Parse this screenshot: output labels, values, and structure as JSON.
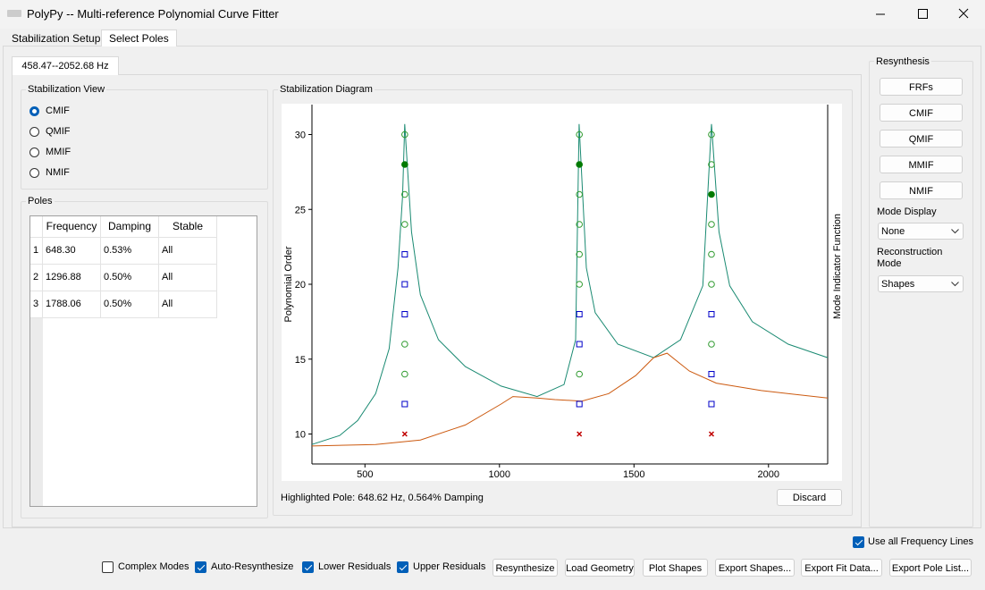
{
  "window": {
    "title": "PolyPy -- Multi-reference Polynomial Curve Fitter"
  },
  "tabs": {
    "items": [
      "Stabilization Setup",
      "Select Poles"
    ],
    "active": 1
  },
  "subtab": "458.47--2052.68 Hz",
  "stabilization_view": {
    "title": "Stabilization View",
    "options": [
      "CMIF",
      "QMIF",
      "MMIF",
      "NMIF"
    ],
    "selected": 0
  },
  "poles": {
    "title": "Poles",
    "columns": [
      "Frequency",
      "Damping",
      "Stable"
    ],
    "row_numbers": [
      "1",
      "2",
      "3"
    ],
    "rows": [
      [
        "648.30",
        "0.53%",
        "All"
      ],
      [
        "1296.88",
        "0.50%",
        "All"
      ],
      [
        "1788.06",
        "0.50%",
        "All"
      ]
    ]
  },
  "diagram": {
    "title": "Stabilization Diagram",
    "highlighted": "Highlighted Pole: 648.62 Hz, 0.564% Damping",
    "discard": "Discard"
  },
  "chart_data": {
    "type": "scatter",
    "ylabel": "Polynomial Order",
    "y2label": "Mode Indicator Function",
    "xlim": [
      303,
      2220
    ],
    "ylim": [
      8,
      32
    ],
    "xticks": [
      500,
      1000,
      1500,
      2000
    ],
    "yticks": [
      10,
      15,
      20,
      25,
      30
    ],
    "series": [
      {
        "color": "#1a8a72",
        "x": [
          303,
          406,
          473,
          540,
          590,
          623,
          640,
          648,
          673,
          706,
          773,
          873,
          1006,
          1140,
          1240,
          1283,
          1296,
          1323,
          1356,
          1440,
          1573,
          1673,
          1756,
          1788,
          1816,
          1856,
          1940,
          2073,
          2220
        ],
        "values": [
          9.3,
          9.9,
          10.9,
          12.7,
          15.7,
          21.1,
          25.9,
          30.7,
          23.5,
          19.3,
          16.3,
          14.5,
          13.2,
          12.5,
          13.3,
          16.3,
          30.7,
          21.1,
          18.1,
          16.0,
          15.1,
          16.3,
          19.9,
          30.7,
          23.5,
          19.9,
          17.5,
          16.0,
          15.1
        ]
      },
      {
        "color": "#cc5a10",
        "x": [
          303,
          540,
          706,
          873,
          1006,
          1050,
          1140,
          1206,
          1306,
          1406,
          1506,
          1573,
          1623,
          1706,
          1806,
          1973,
          2220
        ],
        "values": [
          9.2,
          9.3,
          9.6,
          10.6,
          12.0,
          12.5,
          12.4,
          12.3,
          12.2,
          12.7,
          13.9,
          15.1,
          15.4,
          14.2,
          13.4,
          12.9,
          12.4
        ]
      },
      {
        "marker": "x",
        "color": "#c00000",
        "x": [
          648,
          1297,
          1788
        ],
        "values": [
          10,
          10,
          10
        ]
      },
      {
        "marker": "square",
        "color": "#0000c8",
        "x": [
          648,
          648,
          648,
          648,
          1297,
          1297,
          1297,
          1788,
          1788,
          1788
        ],
        "values": [
          12,
          18,
          20,
          22,
          12,
          16,
          18,
          12,
          14,
          18
        ]
      },
      {
        "marker": "circle",
        "color": "#2e9a2e",
        "x": [
          648,
          648,
          648,
          648,
          648,
          1297,
          1297,
          1297,
          1297,
          1297,
          1297,
          1788,
          1788,
          1788,
          1788,
          1788,
          1788
        ],
        "values": [
          14,
          16,
          24,
          26,
          30,
          14,
          20,
          22,
          24,
          26,
          30,
          16,
          20,
          22,
          24,
          28,
          30
        ]
      },
      {
        "marker": "filled-circle",
        "color": "#007a00",
        "x": [
          648,
          1297,
          1788
        ],
        "values": [
          28,
          28,
          26
        ]
      }
    ]
  },
  "resynthesis": {
    "title": "Resynthesis",
    "buttons": [
      "FRFs",
      "CMIF",
      "QMIF",
      "MMIF",
      "NMIF"
    ],
    "mode_display": {
      "label": "Mode Display",
      "value": "None"
    },
    "reconstruction": {
      "label": "Reconstruction Mode",
      "value": "Shapes"
    }
  },
  "bottom": {
    "use_all": {
      "label": "Use all Frequency Lines",
      "checked": true
    },
    "options": [
      {
        "label": "Complex Modes",
        "checked": false
      },
      {
        "label": "Auto-Resynthesize",
        "checked": true
      },
      {
        "label": "Lower Residuals",
        "checked": true
      },
      {
        "label": "Upper Residuals",
        "checked": true
      }
    ],
    "buttons": [
      "Resynthesize",
      "Load Geometry",
      "Plot Shapes",
      "Export Shapes...",
      "Export Fit Data...",
      "Export Pole List..."
    ]
  }
}
